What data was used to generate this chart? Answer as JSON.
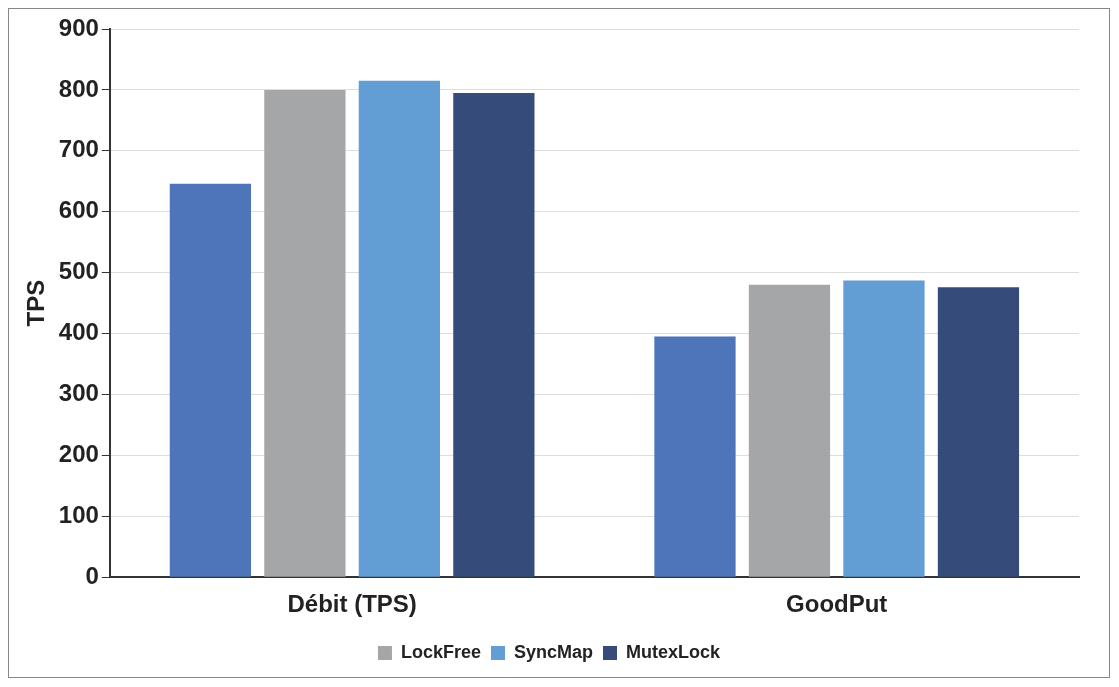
{
  "chart_data": {
    "type": "bar",
    "ylabel": "TPS",
    "categories": [
      "Débit (TPS)",
      "GoodPut"
    ],
    "series": [
      {
        "color": "#4e75b9",
        "values": [
          646,
          395
        ]
      },
      {
        "name": "LockFree",
        "color": "#a5a6a8",
        "values": [
          800,
          480
        ]
      },
      {
        "name": "SyncMap",
        "color": "#629ed3",
        "values": [
          815,
          487
        ]
      },
      {
        "name": "MutexLock",
        "color": "#354c7a",
        "values": [
          795,
          476
        ]
      }
    ],
    "ylim": [
      0,
      900
    ],
    "yticks": [
      0,
      100,
      200,
      300,
      400,
      500,
      600,
      700,
      800,
      900
    ],
    "grid": "y",
    "legend": "bottom"
  }
}
